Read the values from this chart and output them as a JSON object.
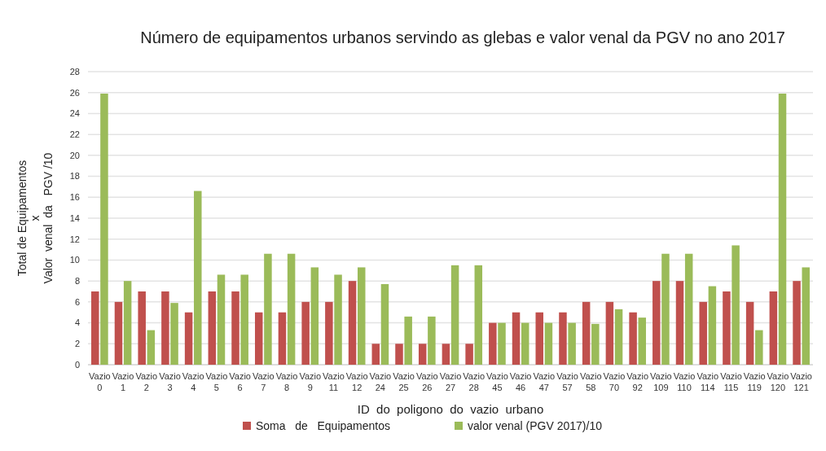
{
  "chart_data": {
    "type": "bar",
    "title": "Número de equipamentos urbanos servindo  as glebas e  valor venal da PGV no ano 2017",
    "xlabel": "ID  do  poligono  do  vazio  urbano",
    "ylabel": "Total de Equipamentos\nx\nValor  venal  da   PGV /10",
    "categories": [
      "Vazio 0",
      "Vazio 1",
      "Vazio 2",
      "Vazio 3",
      "Vazio 4",
      "Vazio 5",
      "Vazio 6",
      "Vazio 7",
      "Vazio 8",
      "Vazio 9",
      "Vazio 11",
      "Vazio 12",
      "Vazio 24",
      "Vazio 25",
      "Vazio 26",
      "Vazio 27",
      "Vazio 28",
      "Vazio 45",
      "Vazio 46",
      "Vazio 47",
      "Vazio 57",
      "Vazio 58",
      "Vazio 70",
      "Vazio 92",
      "Vazio 109",
      "Vazio 110",
      "Vazio 114",
      "Vazio 115",
      "Vazio 119",
      "Vazio 120",
      "Vazio 121"
    ],
    "series": [
      {
        "name": "Soma   de   Equipamentos",
        "color": "#c0504d",
        "values": [
          7,
          6,
          7,
          7,
          5,
          7,
          7,
          5,
          5,
          6,
          6,
          8,
          2,
          2,
          2,
          2,
          2,
          4,
          5,
          5,
          5,
          6,
          6,
          5,
          8,
          8,
          6,
          7,
          6,
          7,
          8
        ]
      },
      {
        "name": "valor venal (PGV 2017)/10",
        "color": "#9bbb59",
        "values": [
          25.9,
          8,
          3.3,
          5.9,
          16.6,
          8.6,
          8.6,
          10.6,
          10.6,
          9.3,
          8.6,
          9.3,
          7.7,
          4.6,
          4.6,
          9.5,
          9.5,
          4,
          4,
          4,
          4,
          3.9,
          5.3,
          4.5,
          10.6,
          10.6,
          7.5,
          11.4,
          3.3,
          25.9,
          9.3
        ]
      }
    ],
    "ylim": [
      0,
      28
    ],
    "yticks": [
      0,
      2,
      4,
      6,
      8,
      10,
      12,
      14,
      16,
      18,
      20,
      22,
      24,
      26,
      28
    ],
    "grid": "y",
    "legend": "bottom"
  }
}
